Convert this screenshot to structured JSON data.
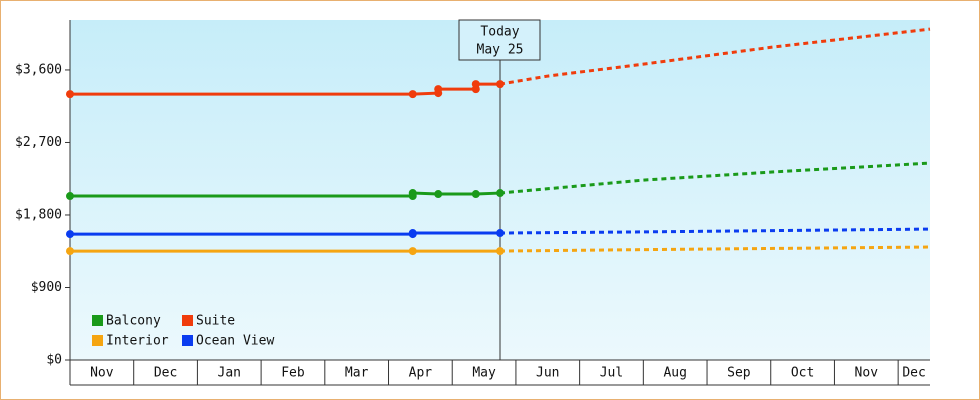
{
  "chart_data": {
    "type": "line",
    "categories": [
      "Nov",
      "Dec",
      "Jan",
      "Feb",
      "Mar",
      "Apr",
      "May",
      "Jun",
      "Jul",
      "Aug",
      "Sep",
      "Oct",
      "Nov",
      "Dec"
    ],
    "xlim": [
      0,
      13.5
    ],
    "ylim": [
      0,
      4220
    ],
    "yticks": [
      {
        "value": 0,
        "label": "$0"
      },
      {
        "value": 900,
        "label": "$900"
      },
      {
        "value": 1800,
        "label": "$1,800"
      },
      {
        "value": 2700,
        "label": "$2,700"
      },
      {
        "value": 3600,
        "label": "$3,600"
      }
    ],
    "annotation": {
      "lines": [
        "Today",
        "May 25"
      ],
      "x": 6.75
    },
    "legend": "bottom-left",
    "series": [
      {
        "name": "Balcony",
        "color": "#1a9a1a",
        "x": [
          0,
          5.38,
          5.38,
          5.78,
          6.37,
          6.75,
          9.0,
          11.02,
          13.5
        ],
        "values": [
          2035,
          2035,
          2072,
          2060,
          2060,
          2072,
          2233,
          2333,
          2444
        ]
      },
      {
        "name": "Suite",
        "color": "#f03c0c",
        "x": [
          0,
          5.38,
          5.78,
          5.78,
          6.37,
          6.37,
          6.75,
          7.5,
          9.0,
          11.02,
          13.5
        ],
        "values": [
          3300,
          3300,
          3313,
          3362,
          3362,
          3424,
          3424,
          3524,
          3672,
          3883,
          4107
        ]
      },
      {
        "name": "Interior",
        "color": "#f5a511",
        "x": [
          0,
          5.38,
          6.75,
          9.0,
          13.5
        ],
        "values": [
          1352,
          1352,
          1352,
          1370,
          1402
        ]
      },
      {
        "name": "Ocean View",
        "color": "#0a3cf0",
        "x": [
          0,
          5.38,
          5.38,
          6.75,
          9.0,
          13.5
        ],
        "values": [
          1563,
          1563,
          1576,
          1576,
          1590,
          1625
        ]
      }
    ]
  }
}
